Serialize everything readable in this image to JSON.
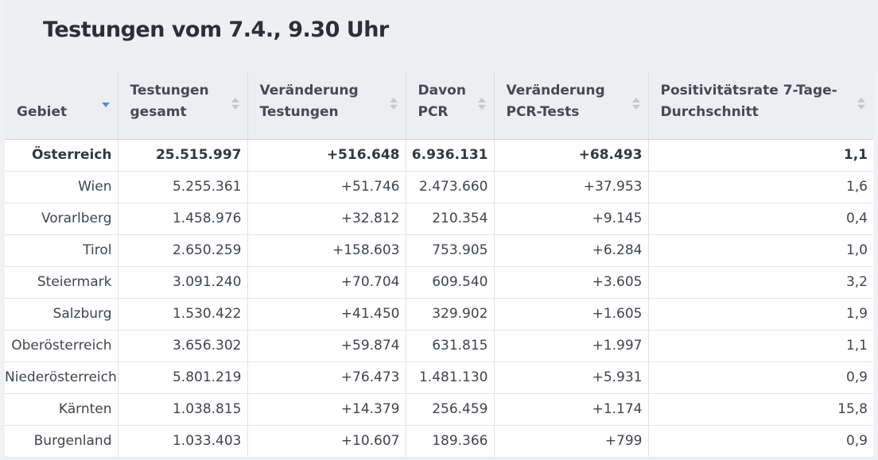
{
  "title": "Testungen vom 7.4., 9.30 Uhr",
  "chart_data": {
    "type": "table",
    "columns": [
      {
        "label": "Gebiet",
        "sort": "desc"
      },
      {
        "label": "Testungen gesamt",
        "sort": "none"
      },
      {
        "label": "Veränderung Testungen",
        "sort": "none"
      },
      {
        "label": "Davon PCR",
        "sort": "none"
      },
      {
        "label": "Veränderung PCR-Tests",
        "sort": "none"
      },
      {
        "label": "Positivitätsrate 7-Tage-Durchschnitt",
        "sort": "none"
      }
    ],
    "rows": [
      [
        "Österreich",
        "25.515.997",
        "+516.648",
        "6.936.131",
        "+68.493",
        "1,1"
      ],
      [
        "Wien",
        "5.255.361",
        "+51.746",
        "2.473.660",
        "+37.953",
        "1,6"
      ],
      [
        "Vorarlberg",
        "1.458.976",
        "+32.812",
        "210.354",
        "+9.145",
        "0,4"
      ],
      [
        "Tirol",
        "2.650.259",
        "+158.603",
        "753.905",
        "+6.284",
        "1,0"
      ],
      [
        "Steiermark",
        "3.091.240",
        "+70.704",
        "609.540",
        "+3.605",
        "3,2"
      ],
      [
        "Salzburg",
        "1.530.422",
        "+41.450",
        "329.902",
        "+1.605",
        "1,9"
      ],
      [
        "Oberösterreich",
        "3.656.302",
        "+59.874",
        "631.815",
        "+1.997",
        "1,1"
      ],
      [
        "Niederösterreich",
        "5.801.219",
        "+76.473",
        "1.481.130",
        "+5.931",
        "0,9"
      ],
      [
        "Kärnten",
        "1.038.815",
        "+14.379",
        "256.459",
        "+1.174",
        "15,8"
      ],
      [
        "Burgenland",
        "1.033.403",
        "+10.607",
        "189.366",
        "+799",
        "0,9"
      ]
    ]
  }
}
